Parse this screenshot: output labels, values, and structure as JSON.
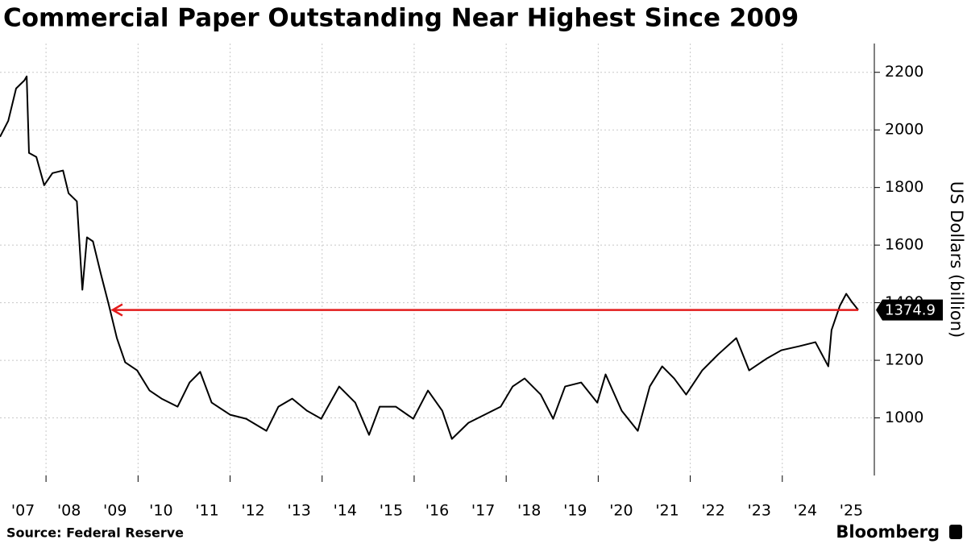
{
  "chart_data": {
    "type": "line",
    "title": "Commercial Paper Outstanding Near Highest Since 2009",
    "y_axis_label": "US Dollars (billion)",
    "source": "Source: Federal Reserve",
    "brand": "Bloomberg",
    "color": "#000000",
    "x": [
      2007.0,
      2007.18,
      2007.35,
      2007.53,
      2007.58,
      2007.63,
      2007.79,
      2007.96,
      2008.14,
      2008.37,
      2008.49,
      2008.67,
      2008.79,
      2008.89,
      2009.02,
      2009.19,
      2009.37,
      2009.54,
      2009.72,
      2009.98,
      2010.25,
      2010.51,
      2010.86,
      2011.12,
      2011.35,
      2011.6,
      2012.0,
      2012.35,
      2012.79,
      2013.05,
      2013.35,
      2013.67,
      2013.98,
      2014.37,
      2014.72,
      2015.02,
      2015.25,
      2015.6,
      2015.98,
      2016.3,
      2016.61,
      2016.82,
      2017.18,
      2017.53,
      2017.88,
      2018.14,
      2018.4,
      2018.75,
      2019.02,
      2019.28,
      2019.63,
      2019.98,
      2020.16,
      2020.51,
      2020.86,
      2021.12,
      2021.39,
      2021.65,
      2021.91,
      2022.26,
      2022.61,
      2023.0,
      2023.28,
      2023.67,
      2023.98,
      2024.37,
      2024.72,
      2025.0,
      2025.07,
      2025.25,
      2025.39,
      2025.51,
      2025.65
    ],
    "values": [
      1976,
      2032,
      2144,
      2172,
      2186,
      1920,
      1906,
      1808,
      1850,
      1859,
      1780,
      1752,
      1445,
      1627,
      1613,
      1501,
      1389,
      1277,
      1193,
      1165,
      1095,
      1067,
      1039,
      1123,
      1160,
      1053,
      1011,
      997,
      955,
      1039,
      1067,
      1025,
      997,
      1109,
      1053,
      941,
      1039,
      1039,
      997,
      1095,
      1025,
      927,
      983,
      1011,
      1039,
      1109,
      1137,
      1081,
      997,
      1109,
      1123,
      1053,
      1151,
      1025,
      955,
      1109,
      1179,
      1137,
      1081,
      1165,
      1221,
      1277,
      1165,
      1207,
      1235,
      1249,
      1263,
      1179,
      1305,
      1389,
      1431,
      1403,
      1374.9
    ],
    "xlim": [
      2007,
      2026
    ],
    "ylim": [
      800,
      2300
    ],
    "yticks": [
      1000,
      1200,
      1400,
      1600,
      1800,
      2000,
      2200
    ],
    "xticks": [
      {
        "value": 2007.5,
        "label": "'07"
      },
      {
        "value": 2008.5,
        "label": "'08"
      },
      {
        "value": 2009.5,
        "label": "'09"
      },
      {
        "value": 2010.5,
        "label": "'10"
      },
      {
        "value": 2011.5,
        "label": "'11"
      },
      {
        "value": 2012.5,
        "label": "'12"
      },
      {
        "value": 2013.5,
        "label": "'13"
      },
      {
        "value": 2014.5,
        "label": "'14"
      },
      {
        "value": 2015.5,
        "label": "'15"
      },
      {
        "value": 2016.5,
        "label": "'16"
      },
      {
        "value": 2017.5,
        "label": "'17"
      },
      {
        "value": 2018.5,
        "label": "'18"
      },
      {
        "value": 2019.5,
        "label": "'19"
      },
      {
        "value": 2020.5,
        "label": "'20"
      },
      {
        "value": 2021.5,
        "label": "'21"
      },
      {
        "value": 2022.5,
        "label": "'22"
      },
      {
        "value": 2023.5,
        "label": "'23"
      },
      {
        "value": 2024.5,
        "label": "'24"
      },
      {
        "value": 2025.5,
        "label": "'25"
      }
    ],
    "xgrid": [
      2008,
      2010,
      2012,
      2014,
      2016,
      2018,
      2020,
      2022,
      2024
    ],
    "grid": true,
    "annotation_arrow": {
      "y": 1374.9,
      "x_start": 2009.45,
      "x_end": 2025.65,
      "color": "#e31b1b"
    }
  }
}
